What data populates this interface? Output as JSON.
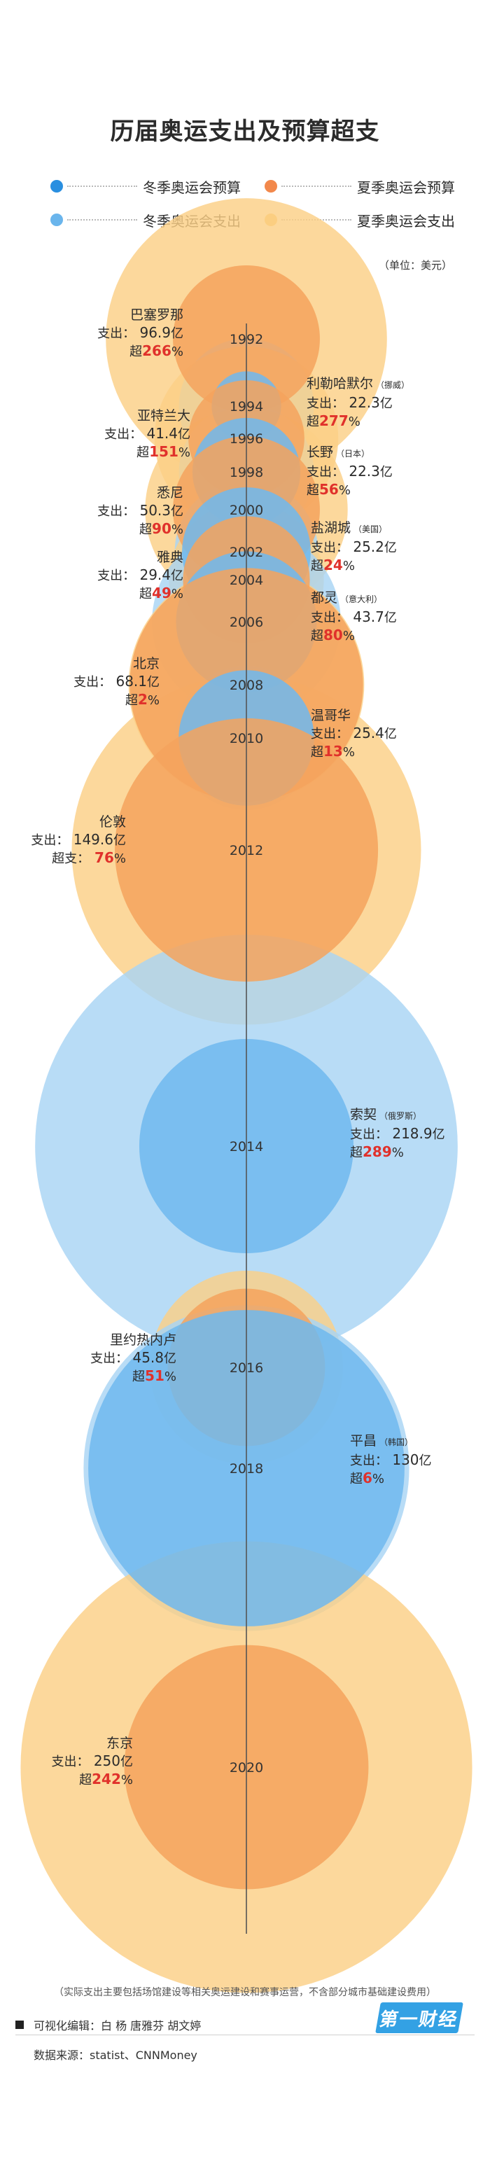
{
  "title": "历届奥运支出及预算超支",
  "unit": "（单位：美元）",
  "legend": [
    {
      "label": "冬季奥运会预算",
      "color": "#2a8fe0"
    },
    {
      "label": "夏季奥运会预算",
      "color": "#f2884b"
    },
    {
      "label": "冬季奥运会支出",
      "color": "#6ab5ec"
    },
    {
      "label": "夏季奥运会支出",
      "color": "#f9c86c"
    }
  ],
  "colors": {
    "summer_spend": "#fbd086",
    "summer_budget": "#f4a35d",
    "winter_spend": "#a8d4f4",
    "winter_budget": "#6fb8ee",
    "axis": "#555555",
    "overrun": "#e0312b"
  },
  "chart_data": {
    "type": "bubble",
    "title": "历届奥运支出及预算超支",
    "unit": "美元",
    "x": [
      "1992",
      "1994",
      "1996",
      "1998",
      "2000",
      "2002",
      "2004",
      "2006",
      "2008",
      "2010",
      "2012",
      "2014",
      "2016",
      "2018",
      "2020"
    ],
    "series": [
      {
        "name": "支出",
        "values": [
          96.9,
          22.3,
          41.4,
          22.3,
          50.3,
          25.2,
          29.4,
          43.7,
          68.1,
          25.4,
          149.6,
          218.9,
          45.8,
          130,
          250
        ]
      },
      {
        "name": "超支",
        "values": [
          266,
          277,
          151,
          56,
          90,
          24,
          49,
          80,
          2,
          13,
          76,
          289,
          51,
          6,
          242
        ]
      }
    ],
    "games": [
      {
        "year": "1992",
        "season": "summer",
        "city": "巴塞罗那",
        "country": "",
        "spend": 96.9,
        "overrun": 266,
        "side": "left"
      },
      {
        "year": "1994",
        "season": "winter",
        "city": "利勒哈默尔",
        "country": "（挪威）",
        "spend": 22.3,
        "overrun": 277,
        "side": "right"
      },
      {
        "year": "1996",
        "season": "summer",
        "city": "亚特兰大",
        "country": "",
        "spend": 41.4,
        "overrun": 151,
        "side": "left"
      },
      {
        "year": "1998",
        "season": "winter",
        "city": "长野",
        "country": "（日本）",
        "spend": 22.3,
        "overrun": 56,
        "side": "right"
      },
      {
        "year": "2000",
        "season": "summer",
        "city": "悉尼",
        "country": "",
        "spend": 50.3,
        "overrun": 90,
        "side": "left"
      },
      {
        "year": "2002",
        "season": "winter",
        "city": "盐湖城",
        "country": "（美国）",
        "spend": 25.2,
        "overrun": 24,
        "side": "right"
      },
      {
        "year": "2004",
        "season": "summer",
        "city": "雅典",
        "country": "",
        "spend": 29.4,
        "overrun": 49,
        "side": "left"
      },
      {
        "year": "2006",
        "season": "winter",
        "city": "都灵",
        "country": "（意大利）",
        "spend": 43.7,
        "overrun": 80,
        "side": "right"
      },
      {
        "year": "2008",
        "season": "summer",
        "city": "北京",
        "country": "",
        "spend": 68.1,
        "overrun": 2,
        "side": "left"
      },
      {
        "year": "2010",
        "season": "winter",
        "city": "温哥华",
        "country": "",
        "spend": 25.4,
        "overrun": 13,
        "side": "right"
      },
      {
        "year": "2012",
        "season": "summer",
        "city": "伦敦",
        "country": "",
        "spend": 149.6,
        "overrun": 76,
        "side": "left"
      },
      {
        "year": "2014",
        "season": "winter",
        "city": "索契",
        "country": "（俄罗斯）",
        "spend": 218.9,
        "overrun": 289,
        "side": "right"
      },
      {
        "year": "2016",
        "season": "summer",
        "city": "里约热内卢",
        "country": "",
        "spend": 45.8,
        "overrun": 51,
        "side": "left"
      },
      {
        "year": "2018",
        "season": "winter",
        "city": "平昌",
        "country": "（韩国）",
        "spend": 130,
        "overrun": 6,
        "side": "right"
      },
      {
        "year": "2020",
        "season": "summer",
        "city": "东京",
        "country": "",
        "spend": 250,
        "overrun": 242,
        "side": "left"
      }
    ]
  },
  "labels": {
    "spend_prefix": "支出：",
    "spend_suffix": "亿",
    "overrun_prefix_short": "超",
    "overrun_prefix_long": "超支：",
    "pct": "%"
  },
  "footer": {
    "note": "（实际支出主要包括场馆建设等相关奥运建设和赛事运营，不含部分城市基础建设费用）",
    "credit": "可视化编辑：白 杨  唐雅芬  胡文婷",
    "source": "数据来源：statist、CNNMoney",
    "logo": "第一财经"
  }
}
